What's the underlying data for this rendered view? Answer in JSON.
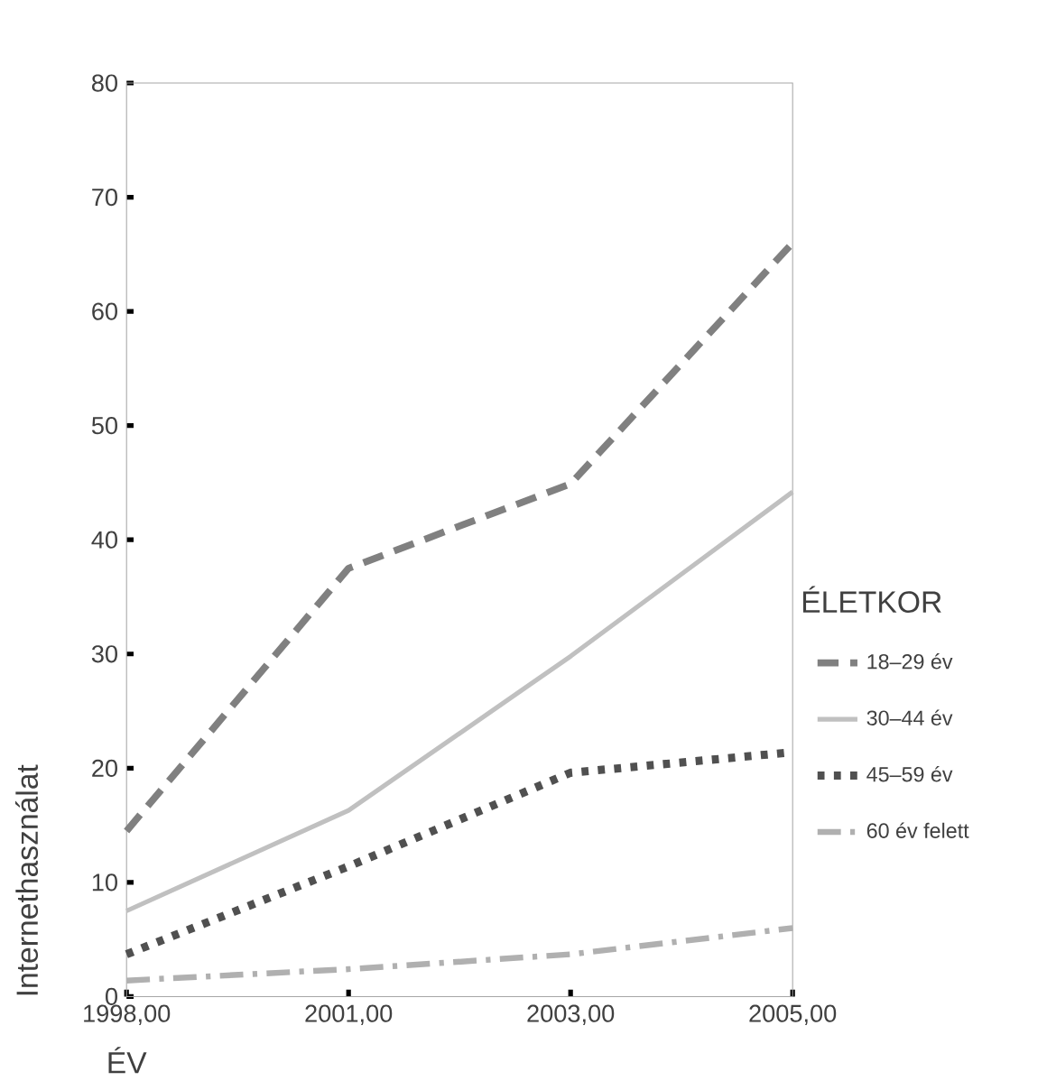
{
  "chart_data": {
    "type": "line",
    "xlabel": "ÉV",
    "ylabel": "Internethasználat",
    "legend_title": "ÉLETKOR",
    "categories": [
      "1998,00",
      "2001,00",
      "2003,00",
      "2005,00"
    ],
    "ylim": [
      0,
      80
    ],
    "yticks": [
      0,
      10,
      20,
      30,
      40,
      50,
      60,
      70,
      80
    ],
    "grid": false,
    "legend": "right",
    "marker": "none",
    "series": [
      {
        "name": "18–29 év",
        "color": "#808080",
        "line_style": "dashed",
        "values": [
          14.5,
          37.5,
          44.9,
          66.0
        ]
      },
      {
        "name": "30–44 év",
        "color": "#c0c0c0",
        "line_style": "solid",
        "values": [
          7.5,
          16.3,
          29.8,
          44.2
        ]
      },
      {
        "name": "45–59 év",
        "color": "#505050",
        "line_style": "dotted",
        "values": [
          3.7,
          11.4,
          19.6,
          21.4
        ]
      },
      {
        "name": "60 év felett",
        "color": "#b0b0b0",
        "line_style": "dashdot",
        "values": [
          1.4,
          2.4,
          3.7,
          6.0
        ]
      }
    ]
  }
}
